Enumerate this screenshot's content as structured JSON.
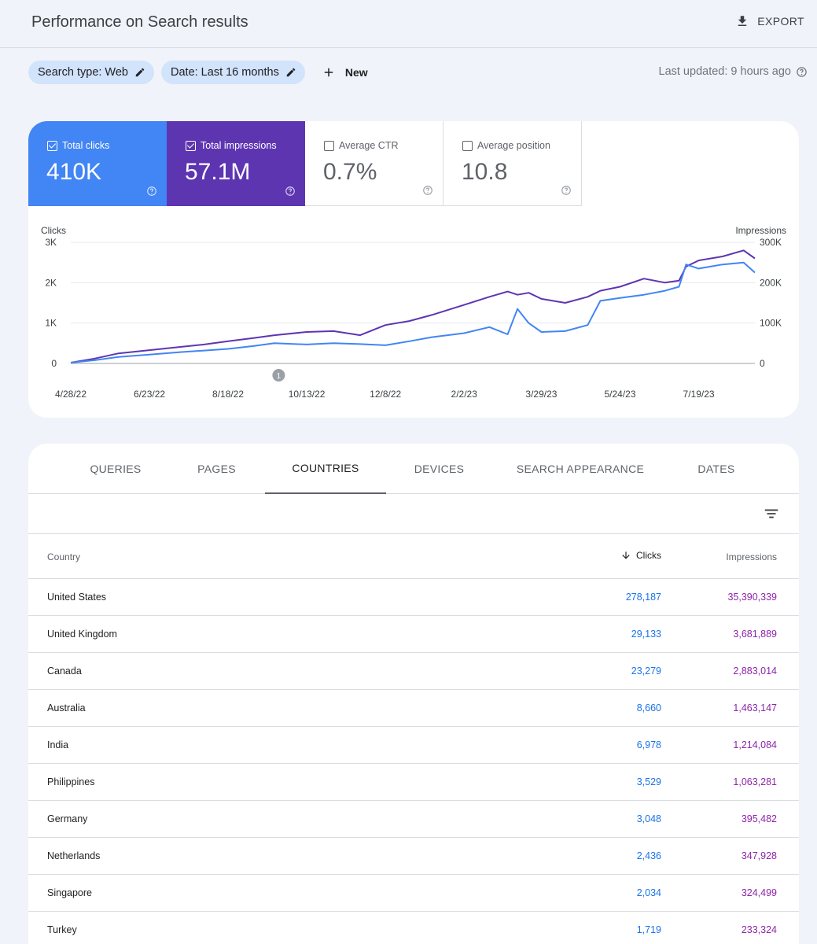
{
  "header": {
    "title": "Performance on Search results",
    "export_label": "EXPORT"
  },
  "filters": {
    "chips": [
      {
        "label": "Search type: Web"
      },
      {
        "label": "Date: Last 16 months"
      }
    ],
    "new_label": "New",
    "last_updated": "Last updated: 9 hours ago"
  },
  "metrics": [
    {
      "label": "Total clicks",
      "value": "410K",
      "checked": true
    },
    {
      "label": "Total impressions",
      "value": "57.1M",
      "checked": true
    },
    {
      "label": "Average CTR",
      "value": "0.7%",
      "checked": false
    },
    {
      "label": "Average position",
      "value": "10.8",
      "checked": false
    }
  ],
  "colors": {
    "clicks": "#4285f4",
    "impressions": "#5e35b1",
    "ctr": "#00897b",
    "position": "#e8710a"
  },
  "chart_data": {
    "type": "line",
    "ylabel_left": "Clicks",
    "ylabel_right": "Impressions",
    "y_left_ticks": [
      "0",
      "1K",
      "2K",
      "3K"
    ],
    "y_right_ticks": [
      "0",
      "100K",
      "200K",
      "300K"
    ],
    "ylim_left": [
      0,
      3000
    ],
    "ylim_right": [
      0,
      300000
    ],
    "x_ticks": [
      "4/28/22",
      "6/23/22",
      "8/18/22",
      "10/13/22",
      "12/8/22",
      "2/2/23",
      "3/29/23",
      "5/24/23",
      "7/19/23"
    ],
    "x_range": [
      "2022-04-28",
      "2023-08-28"
    ],
    "annotation": {
      "label": "1",
      "date": "2022-09-23"
    },
    "grid": true,
    "series": [
      {
        "name": "Clicks",
        "axis": "left",
        "x": [
          "2022-04-28",
          "2022-05-15",
          "2022-06-01",
          "2022-06-23",
          "2022-07-15",
          "2022-08-01",
          "2022-08-18",
          "2022-09-05",
          "2022-09-20",
          "2022-10-13",
          "2022-11-01",
          "2022-11-20",
          "2022-12-08",
          "2022-12-25",
          "2023-01-10",
          "2023-02-02",
          "2023-02-20",
          "2023-03-05",
          "2023-03-12",
          "2023-03-20",
          "2023-03-29",
          "2023-04-15",
          "2023-05-01",
          "2023-05-10",
          "2023-05-24",
          "2023-06-10",
          "2023-06-25",
          "2023-07-05",
          "2023-07-10",
          "2023-07-19",
          "2023-08-05",
          "2023-08-20",
          "2023-08-28"
        ],
        "values": [
          20,
          80,
          160,
          220,
          280,
          320,
          360,
          430,
          500,
          470,
          500,
          480,
          450,
          550,
          650,
          750,
          900,
          720,
          1350,
          1000,
          780,
          800,
          950,
          1550,
          1620,
          1700,
          1800,
          1900,
          2450,
          2350,
          2450,
          2500,
          2250
        ]
      },
      {
        "name": "Impressions",
        "axis": "right",
        "x": [
          "2022-04-28",
          "2022-05-15",
          "2022-06-01",
          "2022-06-23",
          "2022-07-15",
          "2022-08-01",
          "2022-08-18",
          "2022-09-05",
          "2022-09-20",
          "2022-10-13",
          "2022-11-01",
          "2022-11-20",
          "2022-12-08",
          "2022-12-25",
          "2023-01-10",
          "2023-02-02",
          "2023-02-20",
          "2023-03-05",
          "2023-03-12",
          "2023-03-20",
          "2023-03-29",
          "2023-04-15",
          "2023-05-01",
          "2023-05-10",
          "2023-05-24",
          "2023-06-10",
          "2023-06-25",
          "2023-07-05",
          "2023-07-10",
          "2023-07-19",
          "2023-08-05",
          "2023-08-20",
          "2023-08-28"
        ],
        "values": [
          2000,
          12000,
          25000,
          33000,
          41000,
          47000,
          55000,
          63000,
          70000,
          78000,
          80000,
          70000,
          95000,
          105000,
          120000,
          145000,
          165000,
          178000,
          170000,
          175000,
          160000,
          150000,
          165000,
          180000,
          190000,
          210000,
          200000,
          205000,
          240000,
          255000,
          265000,
          280000,
          260000
        ]
      }
    ]
  },
  "tabs": [
    "QUERIES",
    "PAGES",
    "COUNTRIES",
    "DEVICES",
    "SEARCH APPEARANCE",
    "DATES"
  ],
  "active_tab": "COUNTRIES",
  "table": {
    "headers": {
      "country": "Country",
      "clicks": "Clicks",
      "impressions": "Impressions"
    },
    "rows": [
      {
        "country": "United States",
        "clicks": "278,187",
        "impressions": "35,390,339"
      },
      {
        "country": "United Kingdom",
        "clicks": "29,133",
        "impressions": "3,681,889"
      },
      {
        "country": "Canada",
        "clicks": "23,279",
        "impressions": "2,883,014"
      },
      {
        "country": "Australia",
        "clicks": "8,660",
        "impressions": "1,463,147"
      },
      {
        "country": "India",
        "clicks": "6,978",
        "impressions": "1,214,084"
      },
      {
        "country": "Philippines",
        "clicks": "3,529",
        "impressions": "1,063,281"
      },
      {
        "country": "Germany",
        "clicks": "3,048",
        "impressions": "395,482"
      },
      {
        "country": "Netherlands",
        "clicks": "2,436",
        "impressions": "347,928"
      },
      {
        "country": "Singapore",
        "clicks": "2,034",
        "impressions": "324,499"
      },
      {
        "country": "Turkey",
        "clicks": "1,719",
        "impressions": "233,324"
      }
    ]
  }
}
